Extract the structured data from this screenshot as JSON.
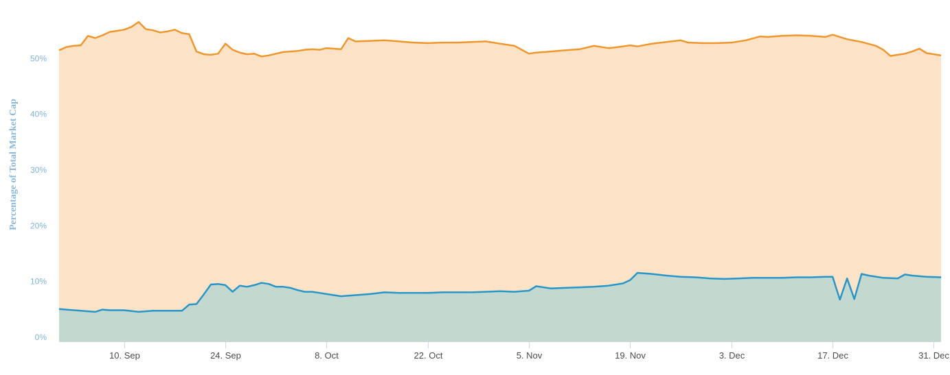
{
  "chart_data": {
    "type": "area",
    "title": "",
    "xlabel": "",
    "ylabel": "Percentage of Total Market Cap",
    "ylim": [
      0,
      60
    ],
    "yticks": [
      0,
      10,
      20,
      30,
      40,
      50
    ],
    "ytick_labels": [
      "0%",
      "10%",
      "20%",
      "30%",
      "40%",
      "50%"
    ],
    "xticks": [
      "2018-09-10",
      "2018-09-24",
      "2018-10-08",
      "2018-10-22",
      "2018-11-05",
      "2018-11-19",
      "2018-12-03",
      "2018-12-17",
      "2018-12-31"
    ],
    "xtick_labels": [
      "10. Sep",
      "24. Sep",
      "8. Oct",
      "22. Oct",
      "5. Nov",
      "19. Nov",
      "3. Dec",
      "17. Dec",
      "31. Dec"
    ],
    "xlim": [
      "2018-09-01",
      "2019-01-01"
    ],
    "grid": "horizontal",
    "legend": "none",
    "colors": {
      "upper_line": "#f0962b",
      "upper_fill": "#fce3c7",
      "lower_line": "#2596c9",
      "lower_fill": "#c3d8cf",
      "grid": "#e6e6e6",
      "axis": "#ccd6eb"
    },
    "series": [
      {
        "x": [
          "2018-09-01",
          "2018-09-02",
          "2018-09-03",
          "2018-09-04",
          "2018-09-05",
          "2018-09-06",
          "2018-09-07",
          "2018-09-08",
          "2018-09-09",
          "2018-09-10",
          "2018-09-11",
          "2018-09-12",
          "2018-09-13",
          "2018-09-14",
          "2018-09-15",
          "2018-09-16",
          "2018-09-17",
          "2018-09-18",
          "2018-09-19",
          "2018-09-20",
          "2018-09-21",
          "2018-09-22",
          "2018-09-23",
          "2018-09-24",
          "2018-09-25",
          "2018-09-26",
          "2018-09-27",
          "2018-09-28",
          "2018-09-29",
          "2018-09-30",
          "2018-10-01",
          "2018-10-02",
          "2018-10-03",
          "2018-10-04",
          "2018-10-05",
          "2018-10-06",
          "2018-10-07",
          "2018-10-08",
          "2018-10-09",
          "2018-10-10",
          "2018-10-11",
          "2018-10-12",
          "2018-10-14",
          "2018-10-16",
          "2018-10-18",
          "2018-10-20",
          "2018-10-22",
          "2018-10-24",
          "2018-10-26",
          "2018-10-28",
          "2018-10-30",
          "2018-11-01",
          "2018-11-03",
          "2018-11-05",
          "2018-11-06",
          "2018-11-08",
          "2018-11-10",
          "2018-11-12",
          "2018-11-14",
          "2018-11-16",
          "2018-11-18",
          "2018-11-19",
          "2018-11-20",
          "2018-11-22",
          "2018-11-24",
          "2018-11-26",
          "2018-11-27",
          "2018-11-29",
          "2018-12-01",
          "2018-12-03",
          "2018-12-05",
          "2018-12-07",
          "2018-12-08",
          "2018-12-10",
          "2018-12-12",
          "2018-12-14",
          "2018-12-16",
          "2018-12-17",
          "2018-12-19",
          "2018-12-21",
          "2018-12-23",
          "2018-12-24",
          "2018-12-25",
          "2018-12-26",
          "2018-12-27",
          "2018-12-28",
          "2018-12-29",
          "2018-12-30",
          "2018-12-31",
          "2019-01-01"
        ],
        "y": [
          52.2,
          52.8,
          53.0,
          53.1,
          54.8,
          54.4,
          54.9,
          55.5,
          55.7,
          55.9,
          56.4,
          57.3,
          56.0,
          55.8,
          55.4,
          55.6,
          55.9,
          55.3,
          55.1,
          52.0,
          51.5,
          51.4,
          51.6,
          53.4,
          52.3,
          51.8,
          51.5,
          51.6,
          51.1,
          51.3,
          51.6,
          51.9,
          52.0,
          52.1,
          52.3,
          52.4,
          52.3,
          52.6,
          52.5,
          52.4,
          54.4,
          53.8,
          53.9,
          54.0,
          53.8,
          53.6,
          53.5,
          53.6,
          53.6,
          53.7,
          53.8,
          53.4,
          53.0,
          51.6,
          51.8,
          52.0,
          52.2,
          52.4,
          53.0,
          52.6,
          52.9,
          53.1,
          52.9,
          53.4,
          53.7,
          54.0,
          53.6,
          53.5,
          53.5,
          53.6,
          54.0,
          54.7,
          54.6,
          54.8,
          54.9,
          54.8,
          54.6,
          55.0,
          54.2,
          53.7,
          53.0,
          52.3,
          51.2,
          51.4,
          51.6,
          52.0,
          52.5,
          51.7,
          51.5,
          51.3
        ]
      },
      {
        "x": [
          "2018-09-01",
          "2018-09-02",
          "2018-09-04",
          "2018-09-06",
          "2018-09-07",
          "2018-09-08",
          "2018-09-09",
          "2018-09-10",
          "2018-09-12",
          "2018-09-14",
          "2018-09-16",
          "2018-09-18",
          "2018-09-19",
          "2018-09-20",
          "2018-09-21",
          "2018-09-22",
          "2018-09-23",
          "2018-09-24",
          "2018-09-25",
          "2018-09-26",
          "2018-09-27",
          "2018-09-28",
          "2018-09-29",
          "2018-09-30",
          "2018-10-01",
          "2018-10-02",
          "2018-10-03",
          "2018-10-04",
          "2018-10-05",
          "2018-10-06",
          "2018-10-07",
          "2018-10-08",
          "2018-10-10",
          "2018-10-12",
          "2018-10-14",
          "2018-10-16",
          "2018-10-18",
          "2018-10-20",
          "2018-10-22",
          "2018-10-24",
          "2018-10-26",
          "2018-10-28",
          "2018-10-30",
          "2018-11-01",
          "2018-11-03",
          "2018-11-05",
          "2018-11-06",
          "2018-11-08",
          "2018-11-10",
          "2018-11-12",
          "2018-11-14",
          "2018-11-16",
          "2018-11-18",
          "2018-11-19",
          "2018-11-20",
          "2018-11-22",
          "2018-11-24",
          "2018-11-26",
          "2018-11-28",
          "2018-11-30",
          "2018-12-02",
          "2018-12-04",
          "2018-12-06",
          "2018-12-08",
          "2018-12-10",
          "2018-12-12",
          "2018-12-14",
          "2018-12-16",
          "2018-12-17",
          "2018-12-18",
          "2018-12-19",
          "2018-12-20",
          "2018-12-21",
          "2018-12-22",
          "2018-12-24",
          "2018-12-26",
          "2018-12-27",
          "2018-12-28",
          "2018-12-30",
          "2019-01-01"
        ],
        "y": [
          5.8,
          5.7,
          5.5,
          5.3,
          5.7,
          5.6,
          5.6,
          5.6,
          5.3,
          5.5,
          5.5,
          5.5,
          6.6,
          6.7,
          8.4,
          10.2,
          10.3,
          10.1,
          8.9,
          10.0,
          9.8,
          10.1,
          10.5,
          10.3,
          9.8,
          9.8,
          9.6,
          9.2,
          8.9,
          8.9,
          8.7,
          8.5,
          8.1,
          8.3,
          8.5,
          8.8,
          8.7,
          8.7,
          8.7,
          8.8,
          8.8,
          8.8,
          8.9,
          9.0,
          8.9,
          9.1,
          9.9,
          9.5,
          9.6,
          9.7,
          9.8,
          10.0,
          10.4,
          11.0,
          12.3,
          12.1,
          11.8,
          11.6,
          11.5,
          11.3,
          11.2,
          11.3,
          11.4,
          11.4,
          11.4,
          11.5,
          11.5,
          11.6,
          11.6,
          7.5,
          11.3,
          7.6,
          12.1,
          11.8,
          11.4,
          11.3,
          12.0,
          11.8,
          11.6,
          11.5
        ]
      }
    ]
  }
}
